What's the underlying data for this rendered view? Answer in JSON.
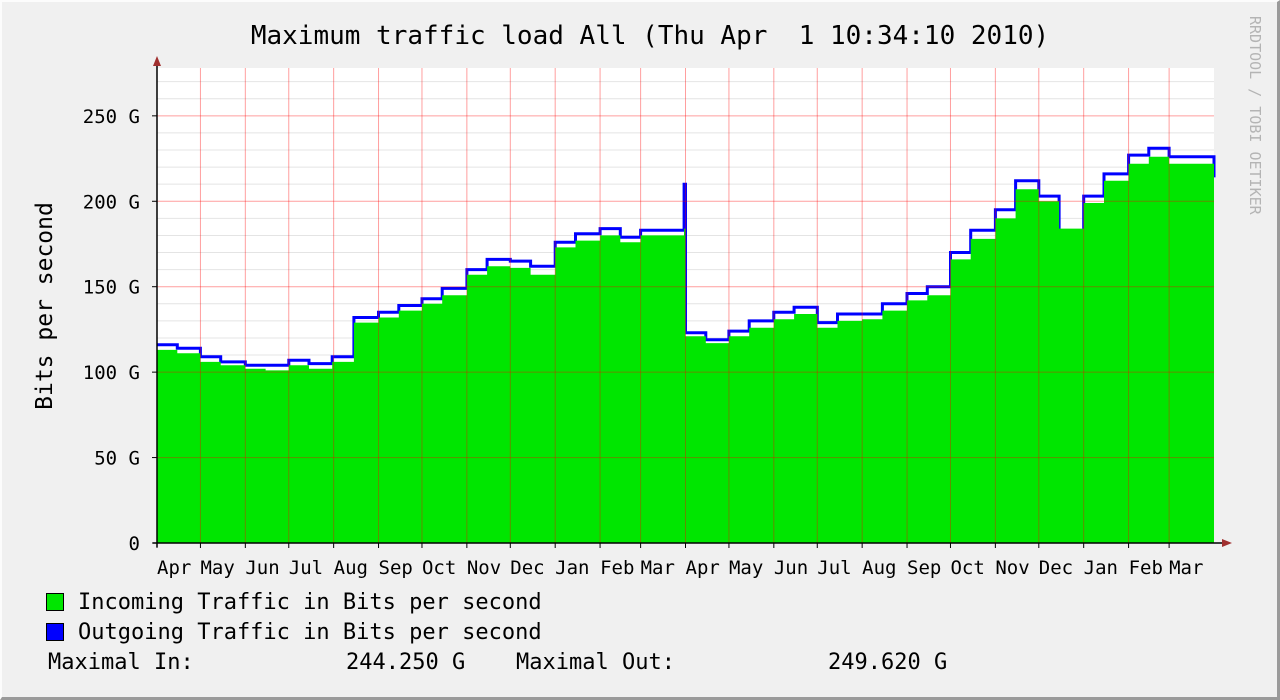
{
  "chart_data": {
    "type": "area",
    "title": "Maximum traffic load All (Thu Apr  1 10:34:10 2010)",
    "ylabel": "Bits per second",
    "watermark": "RRDTOOL / TOBI OETIKER",
    "unit_suffix": "G",
    "ylim": [
      0,
      278
    ],
    "y_ticks": [
      0,
      50,
      100,
      150,
      200,
      250
    ],
    "y_tick_labels": [
      "0",
      "50 G",
      "100 G",
      "150 G",
      "200 G",
      "250 G"
    ],
    "x_range": [
      "2008-04-01",
      "2010-04-01"
    ],
    "x_ticks": [
      "2008-04-01",
      "2008-05-01",
      "2008-06-01",
      "2008-07-01",
      "2008-08-01",
      "2008-09-01",
      "2008-10-01",
      "2008-11-01",
      "2008-12-01",
      "2009-01-01",
      "2009-02-01",
      "2009-03-01",
      "2009-04-01",
      "2009-05-01",
      "2009-06-01",
      "2009-07-01",
      "2009-08-01",
      "2009-09-01",
      "2009-10-01",
      "2009-11-01",
      "2009-12-01",
      "2010-01-01",
      "2010-02-01",
      "2010-03-01"
    ],
    "x_tick_labels": [
      "Apr",
      "May",
      "Jun",
      "Jul",
      "Aug",
      "Sep",
      "Oct",
      "Nov",
      "Dec",
      "Jan",
      "Feb",
      "Mar",
      "Apr",
      "May",
      "Jun",
      "Jul",
      "Aug",
      "Sep",
      "Oct",
      "Nov",
      "Dec",
      "Jan",
      "Feb",
      "Mar"
    ],
    "grid": true,
    "series": [
      {
        "name": "Incoming Traffic in Bits per second",
        "color": "#00e600",
        "x": [
          "2008-04-01",
          "2008-04-15",
          "2008-05-01",
          "2008-05-15",
          "2008-06-01",
          "2008-06-15",
          "2008-07-01",
          "2008-07-15",
          "2008-07-31",
          "2008-08-15",
          "2008-09-01",
          "2008-09-15",
          "2008-10-01",
          "2008-10-15",
          "2008-11-01",
          "2008-11-15",
          "2008-12-01",
          "2008-12-15",
          "2009-01-01",
          "2009-01-15",
          "2009-02-01",
          "2009-02-15",
          "2009-03-01",
          "2009-03-31",
          "2009-04-01",
          "2009-04-15",
          "2009-05-01",
          "2009-05-15",
          "2009-06-01",
          "2009-06-15",
          "2009-07-01",
          "2009-07-15",
          "2009-08-01",
          "2009-08-15",
          "2009-09-01",
          "2009-09-15",
          "2009-10-01",
          "2009-10-15",
          "2009-11-01",
          "2009-11-15",
          "2009-12-01",
          "2009-12-15",
          "2010-01-01",
          "2010-01-15",
          "2010-02-01",
          "2010-02-15",
          "2010-03-01",
          "2010-04-01"
        ],
        "values": [
          113,
          111,
          106,
          104,
          102,
          101,
          104,
          102,
          106,
          129,
          132,
          136,
          140,
          145,
          157,
          162,
          161,
          157,
          173,
          177,
          180,
          176,
          180,
          184,
          121,
          117,
          121,
          126,
          131,
          134,
          126,
          130,
          131,
          136,
          142,
          145,
          166,
          178,
          190,
          207,
          200,
          184,
          199,
          212,
          222,
          226,
          222,
          212
        ]
      },
      {
        "name": "Outgoing Traffic in Bits per second",
        "color": "#0000ff",
        "x": [
          "2008-04-01",
          "2008-04-15",
          "2008-05-01",
          "2008-05-15",
          "2008-06-01",
          "2008-06-15",
          "2008-07-01",
          "2008-07-15",
          "2008-07-31",
          "2008-08-15",
          "2008-09-01",
          "2008-09-15",
          "2008-10-01",
          "2008-10-15",
          "2008-11-01",
          "2008-11-15",
          "2008-12-01",
          "2008-12-15",
          "2009-01-01",
          "2009-01-15",
          "2009-02-01",
          "2009-02-15",
          "2009-03-01",
          "2009-03-31",
          "2009-04-01",
          "2009-04-15",
          "2009-05-01",
          "2009-05-15",
          "2009-06-01",
          "2009-06-15",
          "2009-07-01",
          "2009-07-15",
          "2009-08-01",
          "2009-08-15",
          "2009-09-01",
          "2009-09-15",
          "2009-10-01",
          "2009-10-15",
          "2009-11-01",
          "2009-11-15",
          "2009-12-01",
          "2009-12-15",
          "2010-01-01",
          "2010-01-15",
          "2010-02-01",
          "2010-02-15",
          "2010-03-01",
          "2010-04-01"
        ],
        "values": [
          116,
          114,
          109,
          106,
          104,
          104,
          107,
          105,
          109,
          132,
          135,
          139,
          143,
          149,
          160,
          166,
          165,
          162,
          176,
          181,
          184,
          179,
          183,
          210,
          123,
          119,
          124,
          130,
          135,
          138,
          129,
          134,
          134,
          140,
          146,
          150,
          170,
          183,
          195,
          212,
          203,
          180,
          203,
          216,
          227,
          231,
          226,
          214
        ]
      }
    ],
    "stats": {
      "max_in_label": "Maximal In:",
      "max_in_value": "244.250 G",
      "max_out_label": "Maximal Out:",
      "max_out_value": "249.620 G"
    }
  }
}
